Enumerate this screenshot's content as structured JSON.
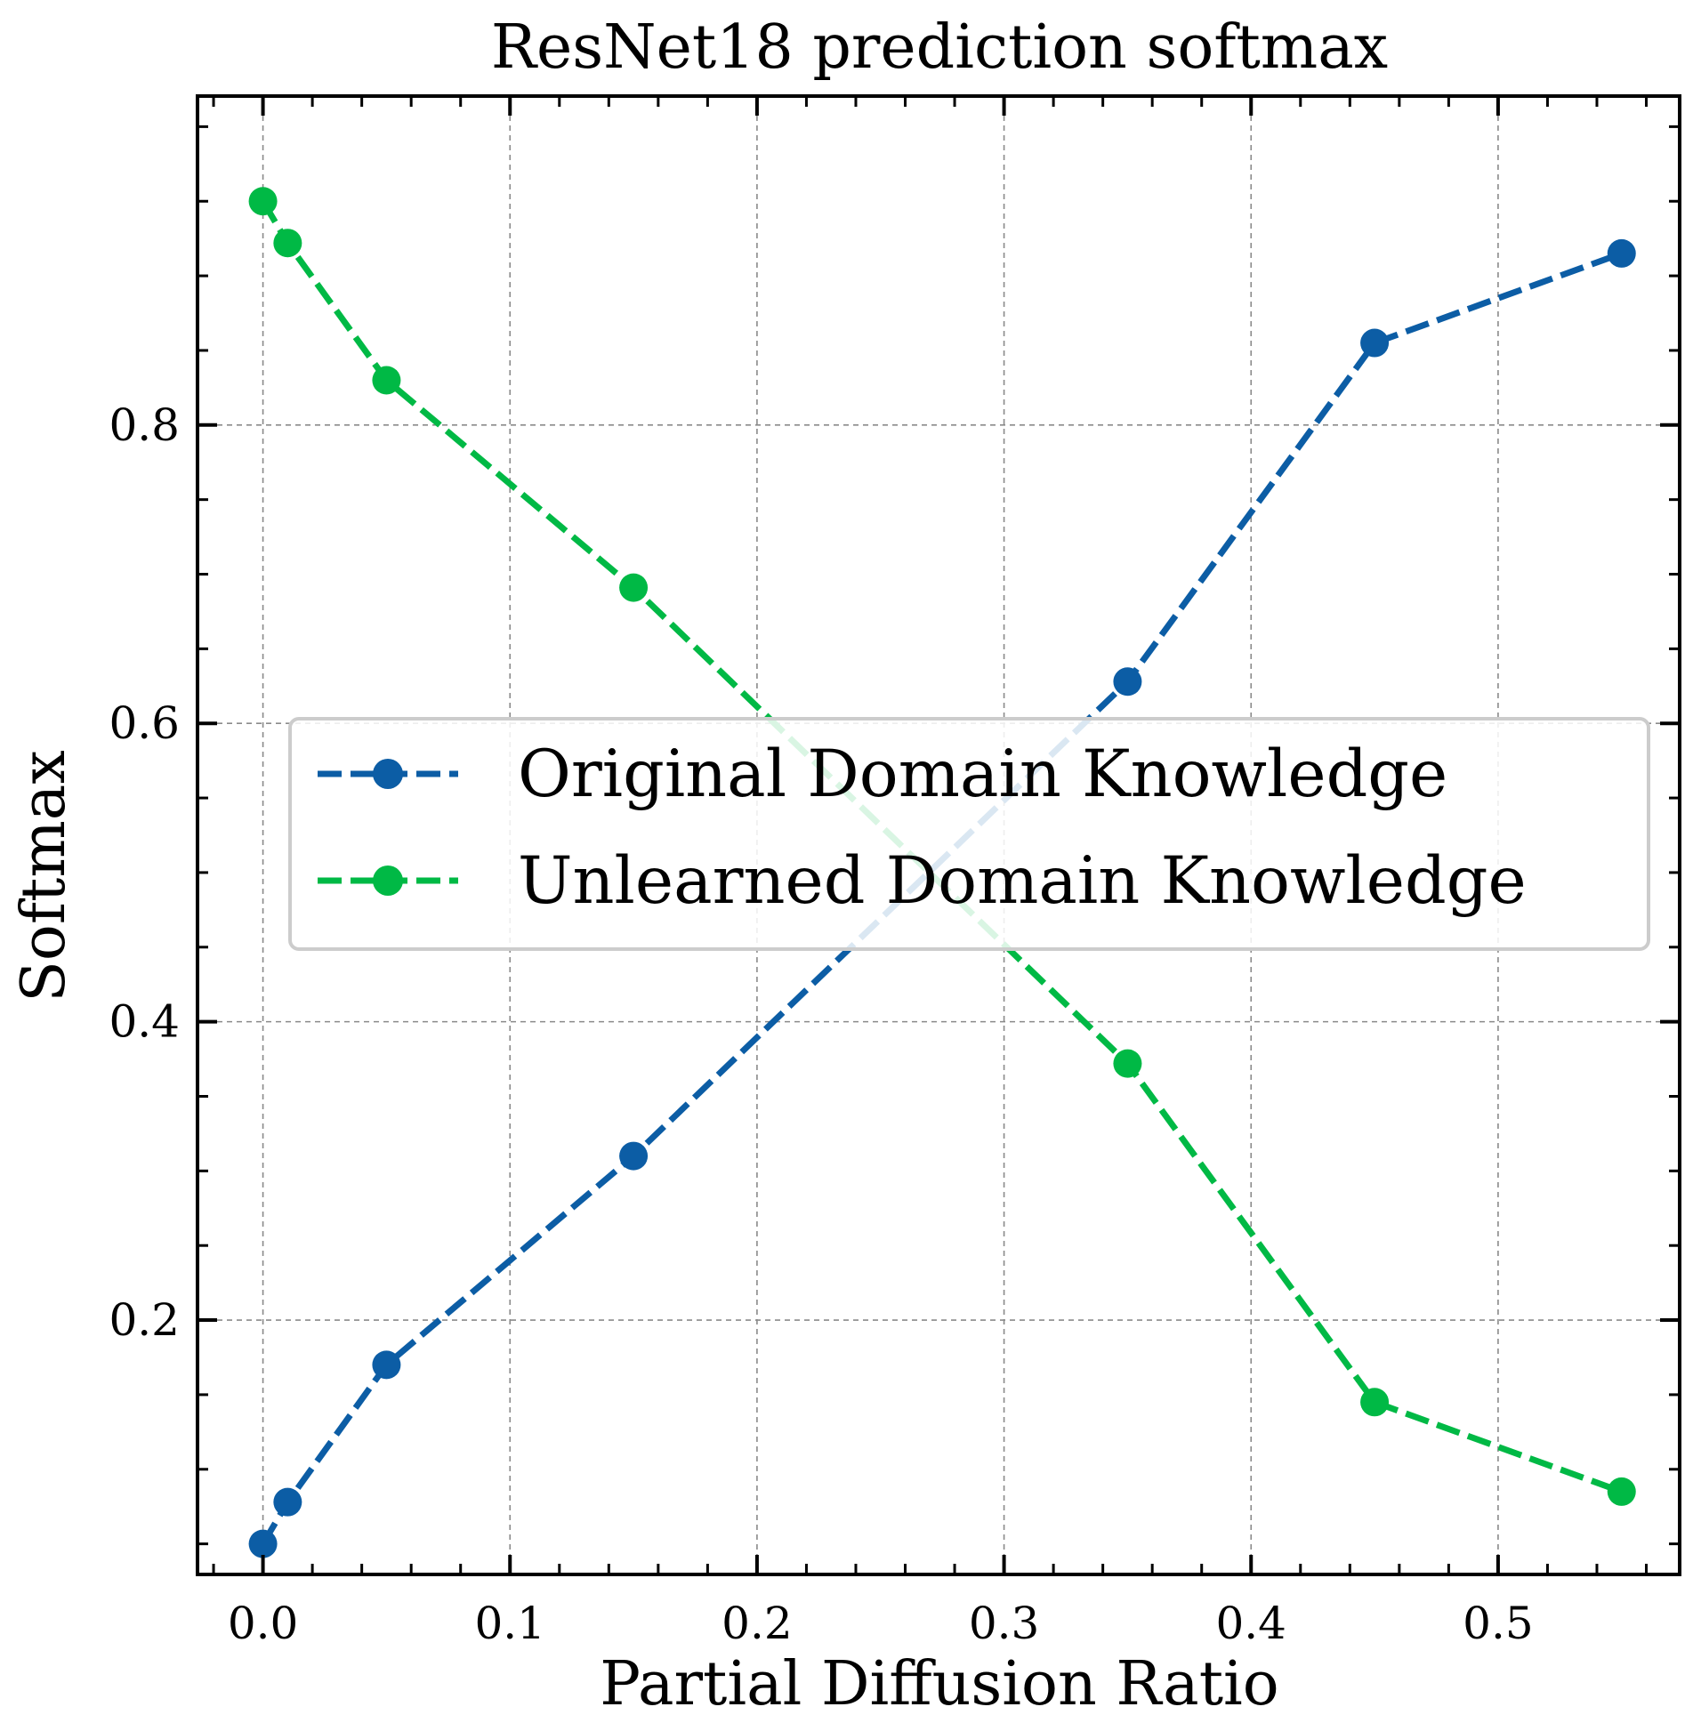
{
  "chart_data": {
    "type": "line",
    "title": "ResNet18 prediction softmax",
    "xlabel": "Partial Diffusion Ratio",
    "ylabel": "Softmax",
    "xlim": [
      -0.0265,
      0.5735
    ],
    "ylim": [
      0.0295,
      1.0205
    ],
    "xticks": [
      0.0,
      0.1,
      0.2,
      0.3,
      0.4,
      0.5
    ],
    "xtick_labels": [
      "0.0",
      "0.1",
      "0.2",
      "0.3",
      "0.4",
      "0.5"
    ],
    "yticks": [
      0.2,
      0.4,
      0.6,
      0.8
    ],
    "ytick_labels": [
      "0.2",
      "0.4",
      "0.6",
      "0.8"
    ],
    "x_minor_step": 0.02,
    "y_minor_step": 0.05,
    "grid": true,
    "legend_position": "center",
    "x": [
      0.0,
      0.01,
      0.05,
      0.15,
      0.35,
      0.45,
      0.55
    ],
    "series": [
      {
        "name": "Original Domain Knowledge",
        "color": "#0c5da5",
        "style": "dashed",
        "marker": "circle",
        "values": [
          0.05,
          0.078,
          0.17,
          0.31,
          0.628,
          0.855,
          0.915
        ]
      },
      {
        "name": "Unlearned Domain Knowledge",
        "color": "#00b945",
        "style": "dashed",
        "marker": "circle",
        "values": [
          0.95,
          0.922,
          0.83,
          0.691,
          0.372,
          0.145,
          0.085
        ]
      }
    ]
  }
}
